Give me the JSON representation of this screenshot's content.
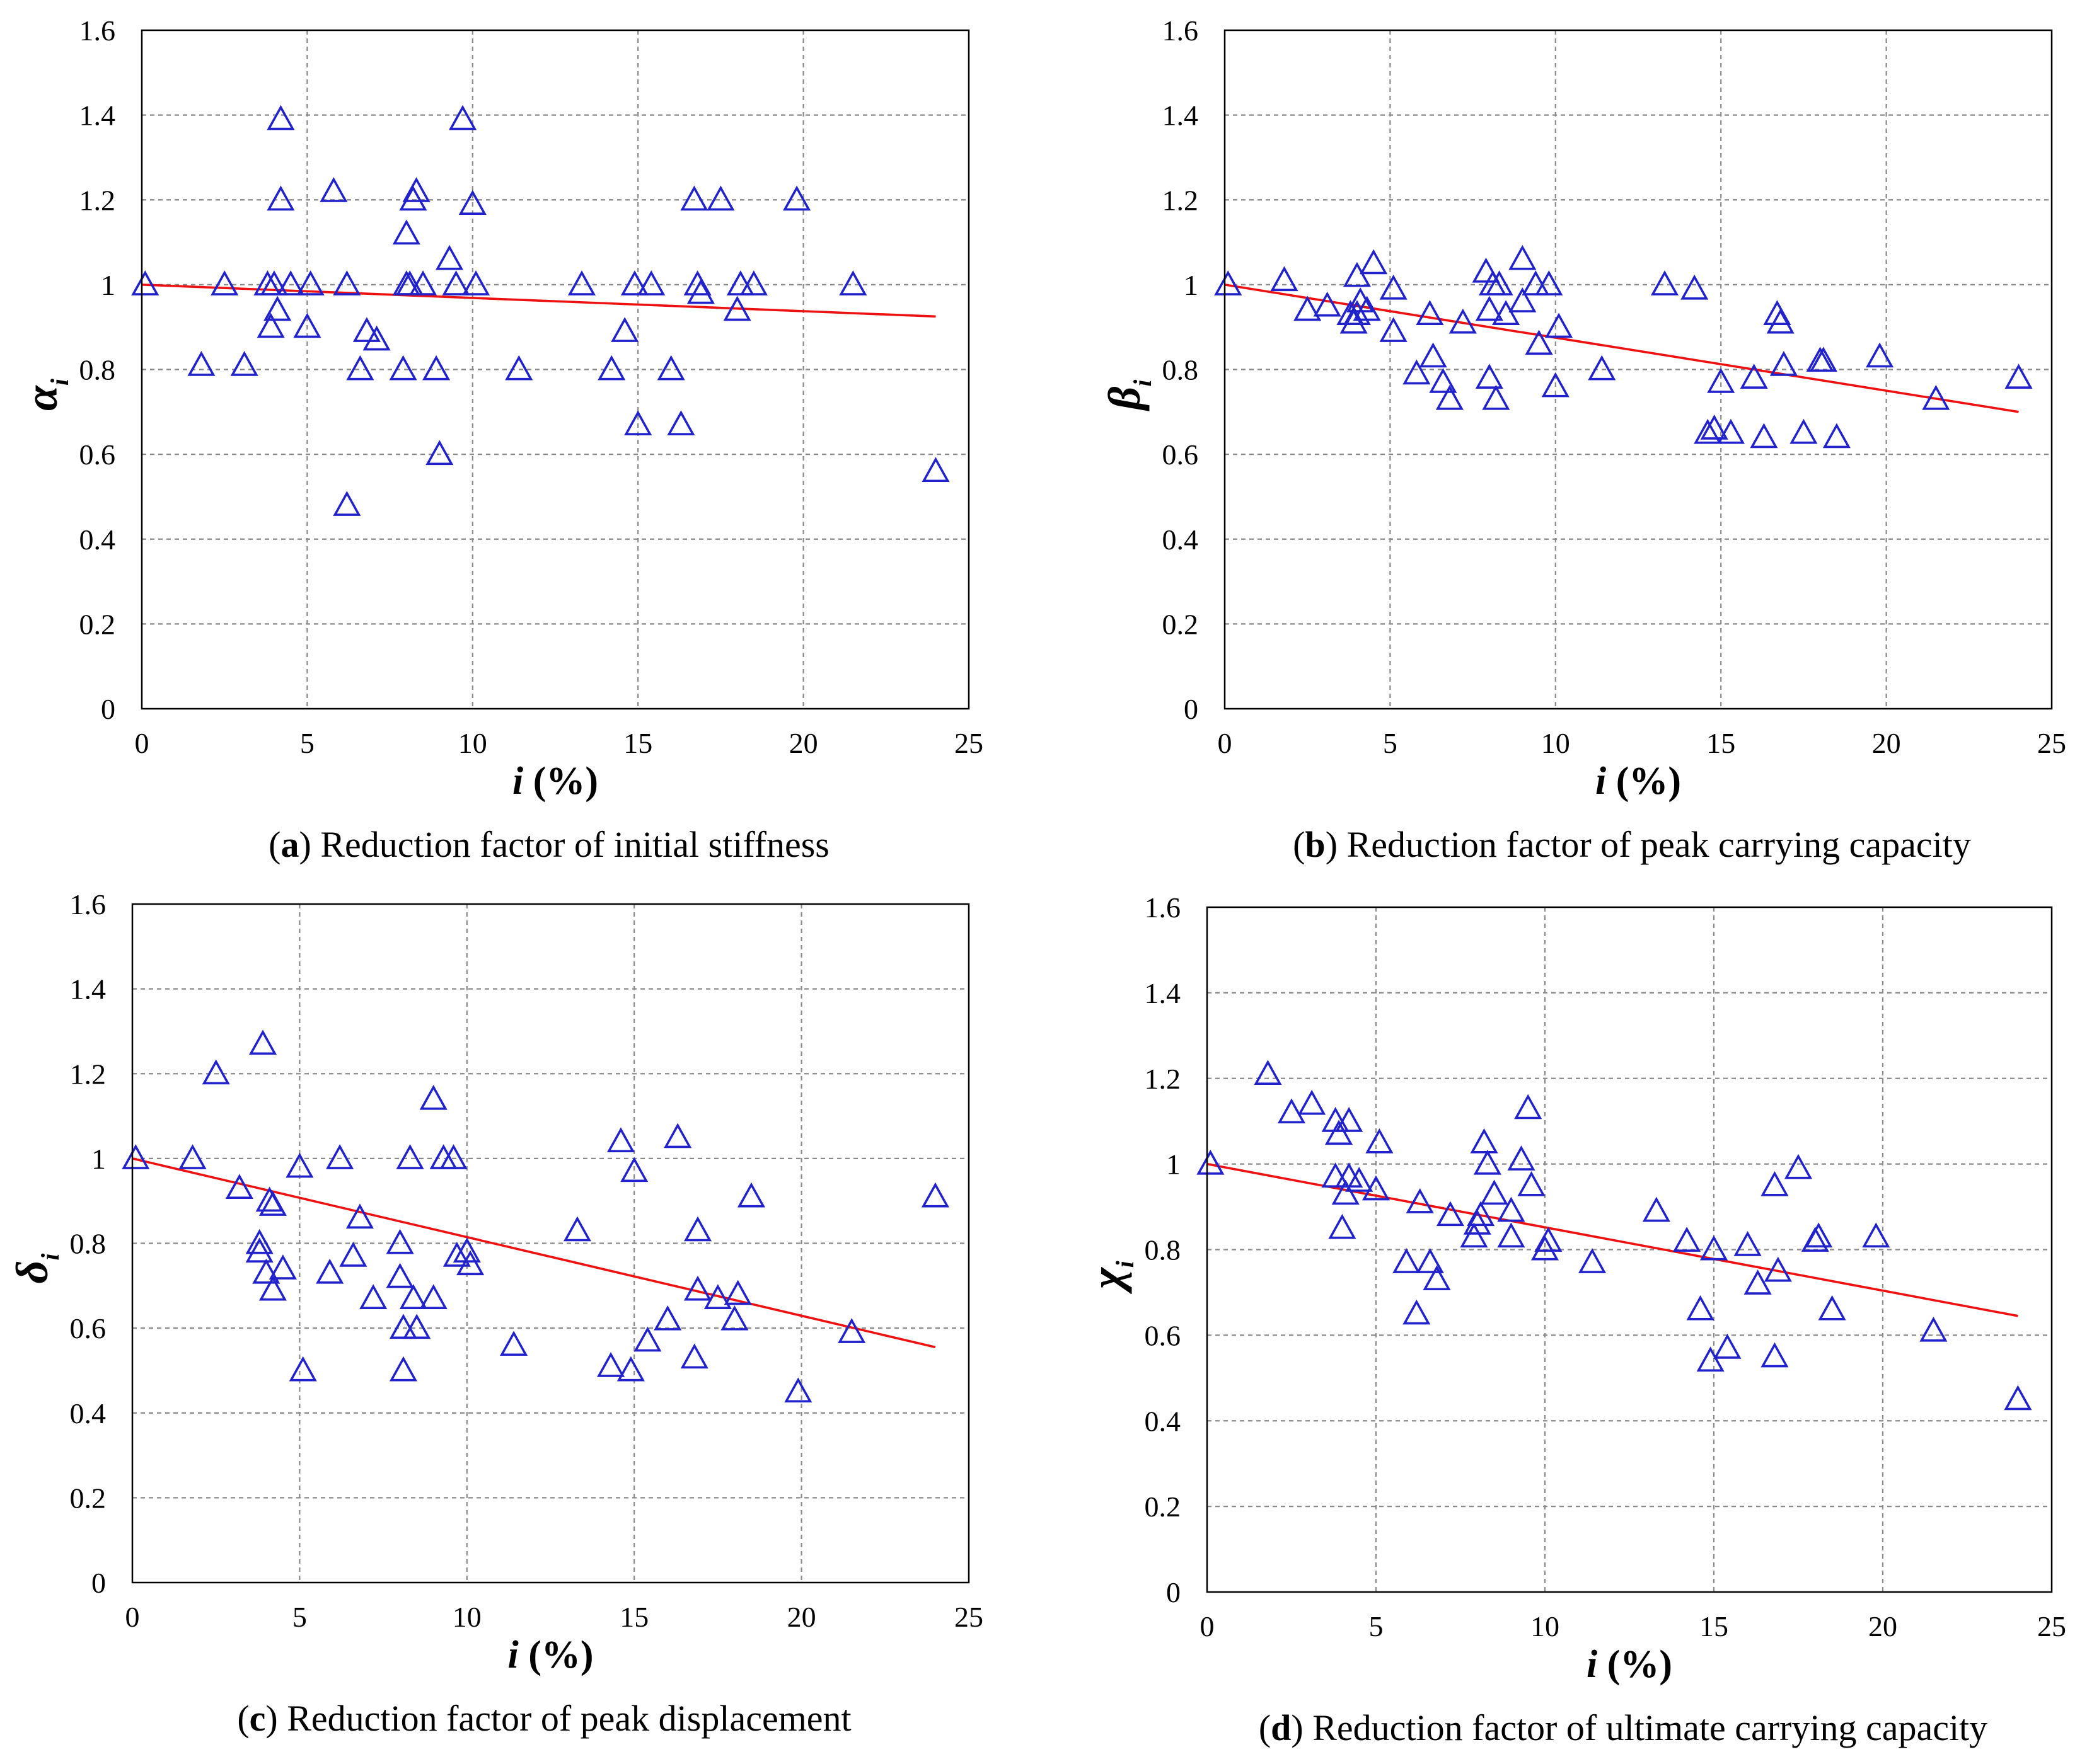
{
  "chart_data": [
    {
      "id": "a",
      "type": "scatter",
      "caption_label": "a",
      "caption_text": "Reduction factor of initial stiffness",
      "xlabel_var": "i",
      "xlabel_unit": "(%)",
      "ylabel_symbol": "α",
      "ylabel_sub": "i",
      "xlim": [
        0,
        25
      ],
      "ylim": [
        0,
        1.6
      ],
      "xticks": [
        "0",
        "5",
        "10",
        "15",
        "20",
        "25"
      ],
      "yticks": [
        "0",
        "0.2",
        "0.4",
        "0.6",
        "0.8",
        "1",
        "1.2",
        "1.4",
        "1.6"
      ],
      "marker": "open-triangle",
      "marker_color": "#2222cc",
      "trend_color": "#ee1111",
      "trendline": {
        "x": [
          0,
          24
        ],
        "y": [
          1.0,
          0.925
        ]
      },
      "points": [
        [
          0.1,
          1.0
        ],
        [
          1.8,
          0.81
        ],
        [
          2.5,
          1.0
        ],
        [
          3.1,
          0.81
        ],
        [
          3.8,
          1.0
        ],
        [
          3.9,
          0.9
        ],
        [
          4.0,
          1.0
        ],
        [
          4.1,
          0.94
        ],
        [
          4.2,
          1.39
        ],
        [
          4.2,
          1.2
        ],
        [
          4.5,
          1.0
        ],
        [
          5.0,
          0.9
        ],
        [
          5.1,
          1.0
        ],
        [
          5.8,
          1.22
        ],
        [
          6.2,
          0.48
        ],
        [
          6.2,
          1.0
        ],
        [
          6.6,
          0.8
        ],
        [
          6.8,
          0.89
        ],
        [
          7.1,
          0.87
        ],
        [
          7.9,
          0.8
        ],
        [
          8.0,
          1.0
        ],
        [
          8.0,
          1.12
        ],
        [
          8.1,
          1.0
        ],
        [
          8.2,
          1.2
        ],
        [
          8.3,
          1.22
        ],
        [
          8.5,
          1.0
        ],
        [
          8.9,
          0.8
        ],
        [
          9.0,
          0.6
        ],
        [
          9.3,
          1.06
        ],
        [
          9.5,
          1.0
        ],
        [
          9.7,
          1.39
        ],
        [
          10.0,
          1.19
        ],
        [
          10.1,
          1.0
        ],
        [
          11.4,
          0.8
        ],
        [
          13.3,
          1.0
        ],
        [
          14.2,
          0.8
        ],
        [
          14.6,
          0.89
        ],
        [
          14.9,
          1.0
        ],
        [
          15.0,
          0.67
        ],
        [
          15.4,
          1.0
        ],
        [
          16.0,
          0.8
        ],
        [
          16.3,
          0.67
        ],
        [
          16.7,
          1.2
        ],
        [
          16.8,
          1.0
        ],
        [
          16.9,
          0.98
        ],
        [
          17.5,
          1.2
        ],
        [
          18.0,
          0.94
        ],
        [
          18.1,
          1.0
        ],
        [
          18.5,
          1.0
        ],
        [
          19.8,
          1.2
        ],
        [
          21.5,
          1.0
        ],
        [
          24.0,
          0.56
        ]
      ]
    },
    {
      "id": "b",
      "type": "scatter",
      "caption_label": "b",
      "caption_text": "Reduction factor of peak carrying capacity",
      "xlabel_var": "i",
      "xlabel_unit": "(%)",
      "ylabel_symbol": "β",
      "ylabel_sub": "i",
      "xlim": [
        0,
        25
      ],
      "ylim": [
        0,
        1.6
      ],
      "xticks": [
        "0",
        "5",
        "10",
        "15",
        "20",
        "25"
      ],
      "yticks": [
        "0",
        "0.2",
        "0.4",
        "0.6",
        "0.8",
        "1",
        "1.2",
        "1.4",
        "1.6"
      ],
      "marker": "open-triangle",
      "marker_color": "#2222cc",
      "trend_color": "#ee1111",
      "trendline": {
        "x": [
          0,
          24
        ],
        "y": [
          1.0,
          0.7
        ]
      },
      "points": [
        [
          0.1,
          1.0
        ],
        [
          1.8,
          1.01
        ],
        [
          2.5,
          0.94
        ],
        [
          3.1,
          0.95
        ],
        [
          3.8,
          0.93
        ],
        [
          3.9,
          0.91
        ],
        [
          4.0,
          0.93
        ],
        [
          4.0,
          1.02
        ],
        [
          4.1,
          0.96
        ],
        [
          4.3,
          0.94
        ],
        [
          4.5,
          1.05
        ],
        [
          5.1,
          0.99
        ],
        [
          5.1,
          0.89
        ],
        [
          5.8,
          0.79
        ],
        [
          6.2,
          0.93
        ],
        [
          6.3,
          0.83
        ],
        [
          6.6,
          0.77
        ],
        [
          6.8,
          0.73
        ],
        [
          7.2,
          0.91
        ],
        [
          7.9,
          1.03
        ],
        [
          8.0,
          0.78
        ],
        [
          8.0,
          0.94
        ],
        [
          8.1,
          1.0
        ],
        [
          8.2,
          0.73
        ],
        [
          8.3,
          1.0
        ],
        [
          8.5,
          0.93
        ],
        [
          9.0,
          0.96
        ],
        [
          9.0,
          1.06
        ],
        [
          9.4,
          1.0
        ],
        [
          9.5,
          0.86
        ],
        [
          9.8,
          1.0
        ],
        [
          10.0,
          0.76
        ],
        [
          10.1,
          0.9
        ],
        [
          11.4,
          0.8
        ],
        [
          13.3,
          1.0
        ],
        [
          14.2,
          0.99
        ],
        [
          14.6,
          0.65
        ],
        [
          14.8,
          0.66
        ],
        [
          15.0,
          0.77
        ],
        [
          15.3,
          0.65
        ],
        [
          16.0,
          0.78
        ],
        [
          16.3,
          0.64
        ],
        [
          16.7,
          0.93
        ],
        [
          16.8,
          0.91
        ],
        [
          16.9,
          0.81
        ],
        [
          17.5,
          0.65
        ],
        [
          18.0,
          0.82
        ],
        [
          18.1,
          0.82
        ],
        [
          18.5,
          0.64
        ],
        [
          19.8,
          0.83
        ],
        [
          21.5,
          0.73
        ],
        [
          24.0,
          0.78
        ]
      ]
    },
    {
      "id": "c",
      "type": "scatter",
      "caption_label": "c",
      "caption_text": "Reduction factor of peak displacement",
      "xlabel_var": "i",
      "xlabel_unit": "(%)",
      "ylabel_symbol": "δ",
      "ylabel_sub": "i",
      "xlim": [
        0,
        25
      ],
      "ylim": [
        0,
        1.6
      ],
      "xticks": [
        "0",
        "5",
        "10",
        "15",
        "20",
        "25"
      ],
      "yticks": [
        "0",
        "0.2",
        "0.4",
        "0.6",
        "0.8",
        "1",
        "1.2",
        "1.4",
        "1.6"
      ],
      "marker": "open-triangle",
      "marker_color": "#2222cc",
      "trend_color": "#ee1111",
      "trendline": {
        "x": [
          0,
          24
        ],
        "y": [
          1.0,
          0.555
        ]
      },
      "points": [
        [
          0.1,
          1.0
        ],
        [
          1.8,
          1.0
        ],
        [
          2.5,
          1.2
        ],
        [
          3.2,
          0.93
        ],
        [
          3.8,
          0.8
        ],
        [
          3.8,
          0.78
        ],
        [
          3.9,
          1.27
        ],
        [
          4.0,
          0.73
        ],
        [
          4.1,
          0.9
        ],
        [
          4.2,
          0.69
        ],
        [
          4.2,
          0.89
        ],
        [
          4.5,
          0.74
        ],
        [
          5.0,
          0.98
        ],
        [
          5.1,
          0.5
        ],
        [
          5.9,
          0.73
        ],
        [
          6.2,
          1.0
        ],
        [
          6.6,
          0.77
        ],
        [
          6.8,
          0.86
        ],
        [
          7.2,
          0.67
        ],
        [
          8.0,
          0.8
        ],
        [
          8.0,
          0.72
        ],
        [
          8.1,
          0.5
        ],
        [
          8.1,
          0.6
        ],
        [
          8.3,
          1.0
        ],
        [
          8.4,
          0.67
        ],
        [
          8.5,
          0.6
        ],
        [
          9.0,
          1.14
        ],
        [
          9.0,
          0.67
        ],
        [
          9.3,
          1.0
        ],
        [
          9.6,
          1.0
        ],
        [
          9.7,
          0.77
        ],
        [
          10.0,
          0.78
        ],
        [
          10.1,
          0.75
        ],
        [
          11.4,
          0.56
        ],
        [
          13.3,
          0.83
        ],
        [
          14.3,
          0.51
        ],
        [
          14.6,
          1.04
        ],
        [
          14.9,
          0.5
        ],
        [
          15.0,
          0.97
        ],
        [
          15.4,
          0.57
        ],
        [
          16.0,
          0.62
        ],
        [
          16.3,
          1.05
        ],
        [
          16.8,
          0.53
        ],
        [
          16.9,
          0.69
        ],
        [
          16.9,
          0.83
        ],
        [
          17.5,
          0.67
        ],
        [
          18.0,
          0.62
        ],
        [
          18.1,
          0.68
        ],
        [
          18.5,
          0.91
        ],
        [
          19.9,
          0.45
        ],
        [
          21.5,
          0.59
        ],
        [
          24.0,
          0.91
        ]
      ]
    },
    {
      "id": "d",
      "type": "scatter",
      "caption_label": "d",
      "caption_text": "Reduction factor of ultimate carrying capacity",
      "xlabel_var": "i",
      "xlabel_unit": "(%)",
      "ylabel_symbol": "χ",
      "ylabel_sub": "i",
      "xlim": [
        0,
        25
      ],
      "ylim": [
        0,
        1.6
      ],
      "xticks": [
        "0",
        "5",
        "10",
        "15",
        "20",
        "25"
      ],
      "yticks": [
        "0",
        "0.2",
        "0.4",
        "0.6",
        "0.8",
        "1",
        "1.2",
        "1.4",
        "1.6"
      ],
      "marker": "open-triangle",
      "marker_color": "#2222cc",
      "trend_color": "#ee1111",
      "trendline": {
        "x": [
          0,
          24
        ],
        "y": [
          1.0,
          0.645
        ]
      },
      "points": [
        [
          0.1,
          1.0
        ],
        [
          1.8,
          1.21
        ],
        [
          2.5,
          1.12
        ],
        [
          3.1,
          1.14
        ],
        [
          3.8,
          1.1
        ],
        [
          3.8,
          0.97
        ],
        [
          3.9,
          1.07
        ],
        [
          4.0,
          0.85
        ],
        [
          4.1,
          0.93
        ],
        [
          4.2,
          1.1
        ],
        [
          4.2,
          0.97
        ],
        [
          4.5,
          0.96
        ],
        [
          5.0,
          0.94
        ],
        [
          5.1,
          1.05
        ],
        [
          5.9,
          0.77
        ],
        [
          6.2,
          0.65
        ],
        [
          6.3,
          0.91
        ],
        [
          6.6,
          0.77
        ],
        [
          6.8,
          0.73
        ],
        [
          7.2,
          0.88
        ],
        [
          7.9,
          0.83
        ],
        [
          8.0,
          0.86
        ],
        [
          8.1,
          0.88
        ],
        [
          8.2,
          1.05
        ],
        [
          8.3,
          1.0
        ],
        [
          8.5,
          0.93
        ],
        [
          9.0,
          0.83
        ],
        [
          9.0,
          0.89
        ],
        [
          9.3,
          1.01
        ],
        [
          9.5,
          1.13
        ],
        [
          9.6,
          0.95
        ],
        [
          10.0,
          0.8
        ],
        [
          10.1,
          0.82
        ],
        [
          11.4,
          0.77
        ],
        [
          13.3,
          0.89
        ],
        [
          14.2,
          0.82
        ],
        [
          14.6,
          0.66
        ],
        [
          14.9,
          0.54
        ],
        [
          15.0,
          0.8
        ],
        [
          15.4,
          0.57
        ],
        [
          16.0,
          0.81
        ],
        [
          16.3,
          0.72
        ],
        [
          16.8,
          0.55
        ],
        [
          16.8,
          0.95
        ],
        [
          16.9,
          0.75
        ],
        [
          17.5,
          0.99
        ],
        [
          18.0,
          0.82
        ],
        [
          18.1,
          0.83
        ],
        [
          18.5,
          0.66
        ],
        [
          19.8,
          0.83
        ],
        [
          21.5,
          0.61
        ],
        [
          24.0,
          0.45
        ]
      ]
    }
  ]
}
